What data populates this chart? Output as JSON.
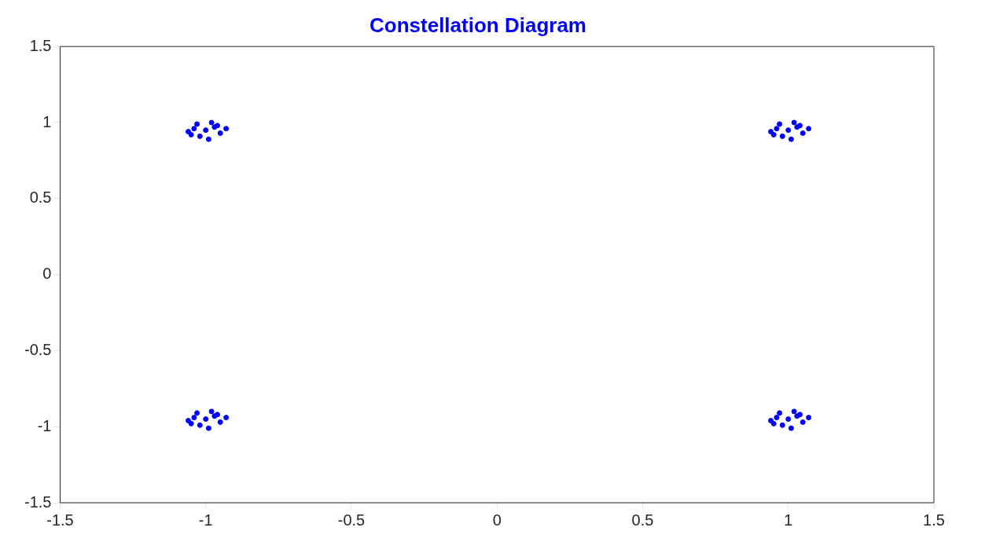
{
  "chart_data": {
    "type": "scatter",
    "title": "Constellation Diagram",
    "series": [
      {
        "color": "#0000ff",
        "x": [
          -1,
          -0.97,
          -1.04,
          -0.95,
          -1.02,
          -0.98,
          -1.06,
          -0.93,
          -0.99,
          -1.03,
          -0.96,
          -1.05,
          1,
          1.03,
          0.96,
          1.05,
          0.98,
          1.02,
          0.94,
          1.07,
          1.01,
          0.97,
          1.04,
          0.95,
          -1,
          -0.97,
          -1.04,
          -0.95,
          -1.02,
          -0.98,
          -1.06,
          -0.93,
          -0.99,
          -1.03,
          -0.96,
          -1.05,
          1,
          1.03,
          0.96,
          1.05,
          0.98,
          1.02,
          0.94,
          1.07,
          1.01,
          0.97,
          1.04,
          0.95
        ],
        "values": [
          0.95,
          0.97,
          0.96,
          0.93,
          0.91,
          1,
          0.94,
          0.96,
          0.89,
          0.99,
          0.98,
          0.92,
          0.95,
          0.97,
          0.96,
          0.93,
          0.91,
          1,
          0.94,
          0.96,
          0.89,
          0.99,
          0.98,
          0.92,
          -0.95,
          -0.93,
          -0.94,
          -0.97,
          -0.99,
          -0.9,
          -0.96,
          -0.94,
          -1.01,
          -0.91,
          -0.92,
          -0.98,
          -0.95,
          -0.93,
          -0.94,
          -0.97,
          -0.99,
          -0.9,
          -0.96,
          -0.94,
          -1.01,
          -0.91,
          -0.92,
          -0.98
        ]
      }
    ],
    "xlim": [
      -1.5,
      1.5
    ],
    "xticks": [
      -1.5,
      -1,
      -0.5,
      0,
      0.5,
      1,
      1.5
    ],
    "ylim": [
      -1.5,
      1.5
    ],
    "yticks": [
      -1.5,
      -1,
      -0.5,
      0,
      0.5,
      1,
      1.5
    ],
    "marker": "circle",
    "grid": false,
    "legend": false
  }
}
